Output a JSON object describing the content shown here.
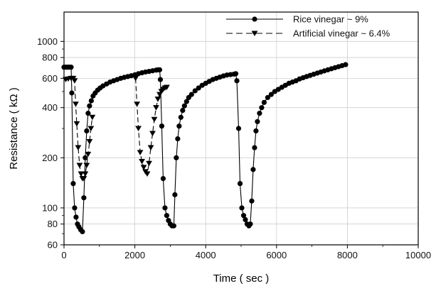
{
  "chart_data": {
    "type": "line",
    "title": "",
    "xlabel": "Time ( sec )",
    "ylabel": "Resistance ( kΩ )",
    "xlim": [
      0,
      10000
    ],
    "ylim": [
      60,
      1500
    ],
    "y_scale": "log",
    "grid": true,
    "legend_position": "top-right",
    "x_ticks": [
      0,
      2000,
      4000,
      6000,
      8000,
      10000
    ],
    "x_tick_labels": [
      "0",
      "2000",
      "4000",
      "6000",
      "8000",
      "10000"
    ],
    "y_ticks": [
      60,
      80,
      100,
      200,
      400,
      600,
      800,
      1000
    ],
    "y_tick_labels": [
      "60",
      "80",
      "100",
      "200",
      "400",
      "600",
      "800",
      "1000"
    ],
    "series": [
      {
        "name": "Rice vinegar ~ 9%",
        "marker": "circle",
        "line_style": "solid",
        "color": "#000000",
        "points": [
          [
            0,
            700
          ],
          [
            50,
            700
          ],
          [
            100,
            700
          ],
          [
            150,
            700
          ],
          [
            200,
            700
          ],
          [
            220,
            490
          ],
          [
            260,
            140
          ],
          [
            300,
            100
          ],
          [
            340,
            88
          ],
          [
            380,
            80
          ],
          [
            420,
            77
          ],
          [
            470,
            74
          ],
          [
            520,
            72
          ],
          [
            560,
            115
          ],
          [
            600,
            200
          ],
          [
            640,
            290
          ],
          [
            680,
            370
          ],
          [
            720,
            410
          ],
          [
            770,
            440
          ],
          [
            820,
            470
          ],
          [
            880,
            490
          ],
          [
            950,
            510
          ],
          [
            1020,
            525
          ],
          [
            1100,
            540
          ],
          [
            1200,
            555
          ],
          [
            1300,
            570
          ],
          [
            1400,
            580
          ],
          [
            1500,
            590
          ],
          [
            1600,
            600
          ],
          [
            1700,
            608
          ],
          [
            1800,
            615
          ],
          [
            1900,
            622
          ],
          [
            2000,
            630
          ],
          [
            2100,
            640
          ],
          [
            2200,
            648
          ],
          [
            2300,
            655
          ],
          [
            2400,
            660
          ],
          [
            2500,
            666
          ],
          [
            2600,
            672
          ],
          [
            2650,
            675
          ],
          [
            2700,
            675
          ],
          [
            2720,
            590
          ],
          [
            2760,
            310
          ],
          [
            2800,
            150
          ],
          [
            2850,
            100
          ],
          [
            2900,
            90
          ],
          [
            2950,
            84
          ],
          [
            3000,
            80
          ],
          [
            3050,
            78
          ],
          [
            3100,
            78
          ],
          [
            3130,
            120
          ],
          [
            3170,
            200
          ],
          [
            3210,
            260
          ],
          [
            3250,
            310
          ],
          [
            3300,
            350
          ],
          [
            3350,
            385
          ],
          [
            3400,
            410
          ],
          [
            3460,
            435
          ],
          [
            3520,
            460
          ],
          [
            3600,
            480
          ],
          [
            3700,
            505
          ],
          [
            3800,
            525
          ],
          [
            3900,
            545
          ],
          [
            4000,
            560
          ],
          [
            4100,
            575
          ],
          [
            4200,
            590
          ],
          [
            4300,
            600
          ],
          [
            4400,
            610
          ],
          [
            4500,
            620
          ],
          [
            4600,
            628
          ],
          [
            4700,
            632
          ],
          [
            4800,
            636
          ],
          [
            4850,
            640
          ],
          [
            4880,
            580
          ],
          [
            4930,
            300
          ],
          [
            4970,
            140
          ],
          [
            5020,
            100
          ],
          [
            5070,
            90
          ],
          [
            5120,
            85
          ],
          [
            5170,
            80
          ],
          [
            5220,
            78
          ],
          [
            5260,
            80
          ],
          [
            5300,
            110
          ],
          [
            5340,
            170
          ],
          [
            5380,
            230
          ],
          [
            5420,
            290
          ],
          [
            5460,
            330
          ],
          [
            5520,
            370
          ],
          [
            5580,
            400
          ],
          [
            5650,
            430
          ],
          [
            5750,
            460
          ],
          [
            5850,
            480
          ],
          [
            5950,
            500
          ],
          [
            6050,
            515
          ],
          [
            6150,
            530
          ],
          [
            6250,
            545
          ],
          [
            6350,
            560
          ],
          [
            6450,
            570
          ],
          [
            6550,
            580
          ],
          [
            6650,
            595
          ],
          [
            6750,
            605
          ],
          [
            6850,
            615
          ],
          [
            6950,
            625
          ],
          [
            7050,
            635
          ],
          [
            7150,
            645
          ],
          [
            7250,
            655
          ],
          [
            7350,
            665
          ],
          [
            7450,
            675
          ],
          [
            7550,
            685
          ],
          [
            7650,
            695
          ],
          [
            7750,
            705
          ],
          [
            7850,
            715
          ],
          [
            7950,
            725
          ]
        ]
      },
      {
        "name": "Artificial vinegar ~ 6.4%",
        "marker": "triangle-down",
        "line_style": "dashed",
        "color": "#000000",
        "points": [
          [
            50,
            590
          ],
          [
            120,
            595
          ],
          [
            200,
            600
          ],
          [
            260,
            600
          ],
          [
            300,
            580
          ],
          [
            330,
            420
          ],
          [
            360,
            320
          ],
          [
            400,
            230
          ],
          [
            440,
            180
          ],
          [
            480,
            160
          ],
          [
            520,
            150
          ],
          [
            560,
            150
          ],
          [
            600,
            160
          ],
          [
            640,
            180
          ],
          [
            680,
            210
          ],
          [
            720,
            250
          ],
          [
            760,
            300
          ],
          [
            800,
            350
          ],
          [
            2020,
            600
          ],
          [
            2060,
            420
          ],
          [
            2100,
            300
          ],
          [
            2150,
            215
          ],
          [
            2200,
            190
          ],
          [
            2250,
            175
          ],
          [
            2300,
            165
          ],
          [
            2350,
            160
          ],
          [
            2400,
            185
          ],
          [
            2450,
            230
          ],
          [
            2500,
            280
          ],
          [
            2550,
            340
          ],
          [
            2600,
            400
          ],
          [
            2650,
            450
          ],
          [
            2700,
            480
          ],
          [
            2750,
            500
          ],
          [
            2800,
            515
          ],
          [
            2850,
            525
          ],
          [
            2900,
            530
          ]
        ]
      }
    ]
  }
}
